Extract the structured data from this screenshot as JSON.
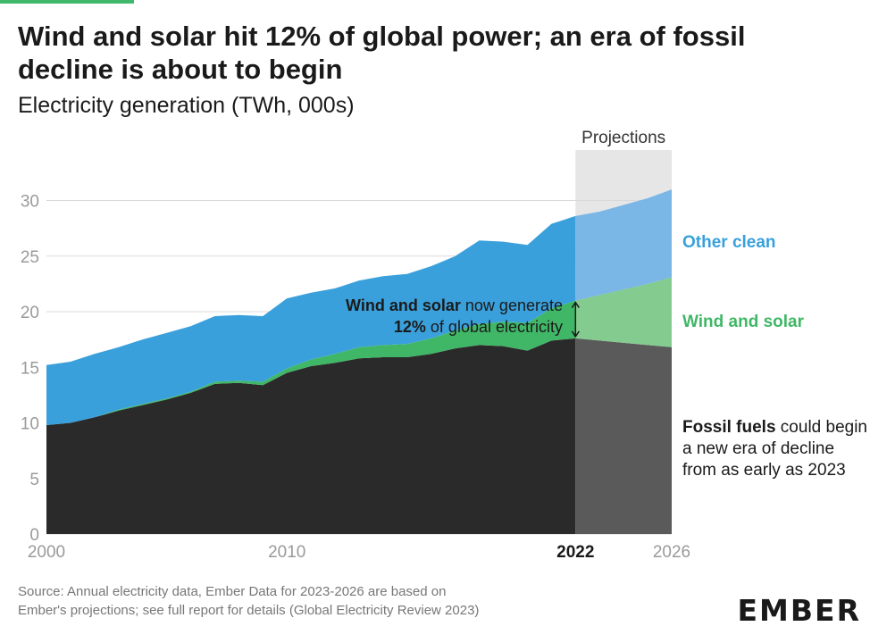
{
  "title_line1": "Wind and solar hit 12% of global power; an era of fossil",
  "title_line2": "decline is about to begin",
  "subtitle": "Electricity generation (TWh, 000s)",
  "source_line1": "Source: Annual electricity data, Ember Data for 2023-2026 are based on",
  "source_line2": "Ember's projections; see full report for details (Global Electricity Review 2023)",
  "logo_text": "EMBER",
  "projection_label": "Projections",
  "colors": {
    "fossil": "#2a2a2a",
    "fossil_proj": "#5a5a5a",
    "wind_solar": "#40b766",
    "wind_solar_proj": "#84cb90",
    "other_clean": "#3aa0dc",
    "other_clean_proj": "#7ab6e6",
    "projection_band": "#e6e6e6",
    "grid": "#d9d9d9",
    "tick": "#9a9a9a"
  },
  "chart_data": {
    "type": "area",
    "stacked": true,
    "title": "Wind and solar hit 12% of global power; an era of fossil decline is about to begin",
    "ylabel": "Electricity generation (TWh, 000s)",
    "xlim": [
      2000,
      2026
    ],
    "ylim": [
      0,
      33
    ],
    "yticks": [
      0,
      5,
      10,
      15,
      20,
      25,
      30
    ],
    "xticks": [
      {
        "value": 2000,
        "label": "2000",
        "bold": false
      },
      {
        "value": 2010,
        "label": "2010",
        "bold": false
      },
      {
        "value": 2022,
        "label": "2022",
        "bold": true
      },
      {
        "value": 2026,
        "label": "2026",
        "bold": false
      }
    ],
    "grid": true,
    "projection_start": 2022,
    "x": [
      2000,
      2001,
      2002,
      2003,
      2004,
      2005,
      2006,
      2007,
      2008,
      2009,
      2010,
      2011,
      2012,
      2013,
      2014,
      2015,
      2016,
      2017,
      2018,
      2019,
      2020,
      2021,
      2022,
      2023,
      2024,
      2025,
      2026
    ],
    "series": [
      {
        "name": "Fossil fuels",
        "values": [
          9.8,
          10.0,
          10.5,
          11.1,
          11.6,
          12.1,
          12.7,
          13.5,
          13.6,
          13.4,
          14.5,
          15.1,
          15.4,
          15.8,
          15.9,
          15.9,
          16.2,
          16.7,
          17.0,
          16.9,
          16.5,
          17.4,
          17.6,
          17.4,
          17.2,
          17.0,
          16.8
        ]
      },
      {
        "name": "Wind and solar",
        "values": [
          0.0,
          0.0,
          0.0,
          0.1,
          0.1,
          0.1,
          0.1,
          0.2,
          0.2,
          0.3,
          0.4,
          0.6,
          0.8,
          1.0,
          1.1,
          1.2,
          1.4,
          1.6,
          1.9,
          2.2,
          2.5,
          2.9,
          3.4,
          4.1,
          4.8,
          5.5,
          6.3
        ]
      },
      {
        "name": "Other clean",
        "values": [
          5.4,
          5.5,
          5.7,
          5.6,
          5.8,
          5.9,
          5.9,
          5.9,
          5.9,
          5.9,
          6.3,
          6.0,
          5.9,
          6.0,
          6.2,
          6.3,
          6.5,
          6.7,
          7.5,
          7.2,
          7.0,
          7.6,
          7.6,
          7.5,
          7.6,
          7.7,
          7.9
        ]
      }
    ],
    "annotations": {
      "ws_bold": "Wind and solar",
      "ws_rest": " now generate",
      "ws_pct": "12%",
      "ws_rest2": " of global electricity",
      "fossil_bold": "Fossil fuels",
      "fossil_rest1": " could begin",
      "fossil_rest2": "a new era of decline",
      "fossil_rest3": "from as early as 2023"
    },
    "legend_labels": {
      "other_clean": "Other clean",
      "wind_solar": "Wind and solar"
    }
  }
}
